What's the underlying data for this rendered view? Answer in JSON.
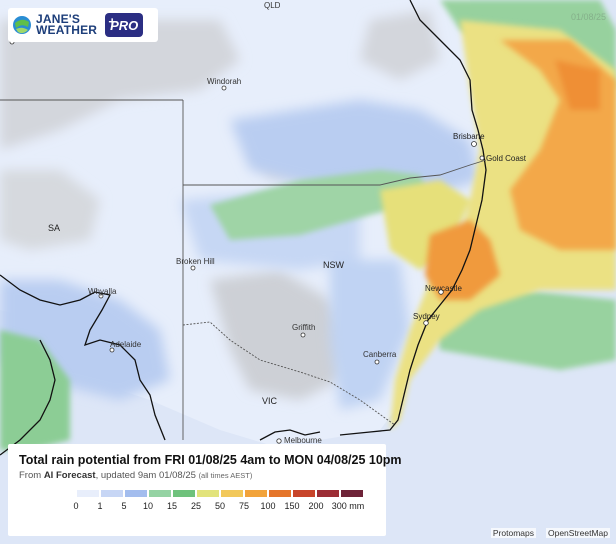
{
  "app": {
    "brand_line1": "JANE'S",
    "brand_line2": "WEATHER",
    "pro_badge": "PRO",
    "pro_plus": "+",
    "faint_date": "01/08/25"
  },
  "legend": {
    "title": "Total rain potential from FRI 01/08/25 4am to MON 04/08/25 10pm",
    "subtitle_prefix": "From ",
    "subtitle_source": "AI Forecast",
    "subtitle_suffix": ", updated 9am 01/08/25 ",
    "subtitle_tz": "(all times AEST)",
    "ticks": [
      "0",
      "1",
      "5",
      "10",
      "15",
      "25",
      "50",
      "75",
      "100",
      "150",
      "200",
      "300 mm"
    ],
    "colors": [
      "#e8eefb",
      "#c7d6f5",
      "#a3bdee",
      "#95d3a3",
      "#6fc27c",
      "#e2e37b",
      "#f2c85a",
      "#f2a33a",
      "#e5752a",
      "#c8452a",
      "#9c2d35",
      "#6e2338"
    ]
  },
  "map": {
    "regions": {
      "sa": "SA",
      "nsw": "NSW",
      "vic": "VIC"
    },
    "places": {
      "windorah": "Windorah",
      "broken_hill": "Broken Hill",
      "whyalla": "Whyalla",
      "adelaide": "Adelaide",
      "griffith": "Griffith",
      "canberra": "Canberra",
      "melbourne": "Melbourne",
      "brisbane": "Brisbane",
      "gold_coast": "Gold Coast",
      "newcastle": "Newcastle",
      "sydney": "Sydney",
      "qld_partial": "QLD"
    }
  },
  "attribution": {
    "protomaps": "Protomaps",
    "osm": "OpenStreetMap"
  }
}
